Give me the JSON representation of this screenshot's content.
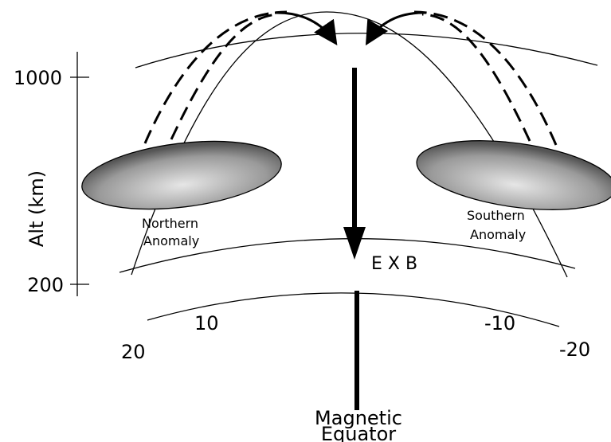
{
  "axis": {
    "ticks": [
      "1000",
      "200"
    ],
    "label": "Alt (km)"
  },
  "anomalies": [
    {
      "label": [
        "Northern",
        "Anomaly"
      ]
    },
    {
      "label": [
        "Southern",
        "Anomaly"
      ]
    }
  ],
  "drift": "E X B",
  "latitudes": [
    "10",
    "20",
    "-10",
    "-20"
  ],
  "equator": [
    "Magnetic",
    "Equator"
  ]
}
